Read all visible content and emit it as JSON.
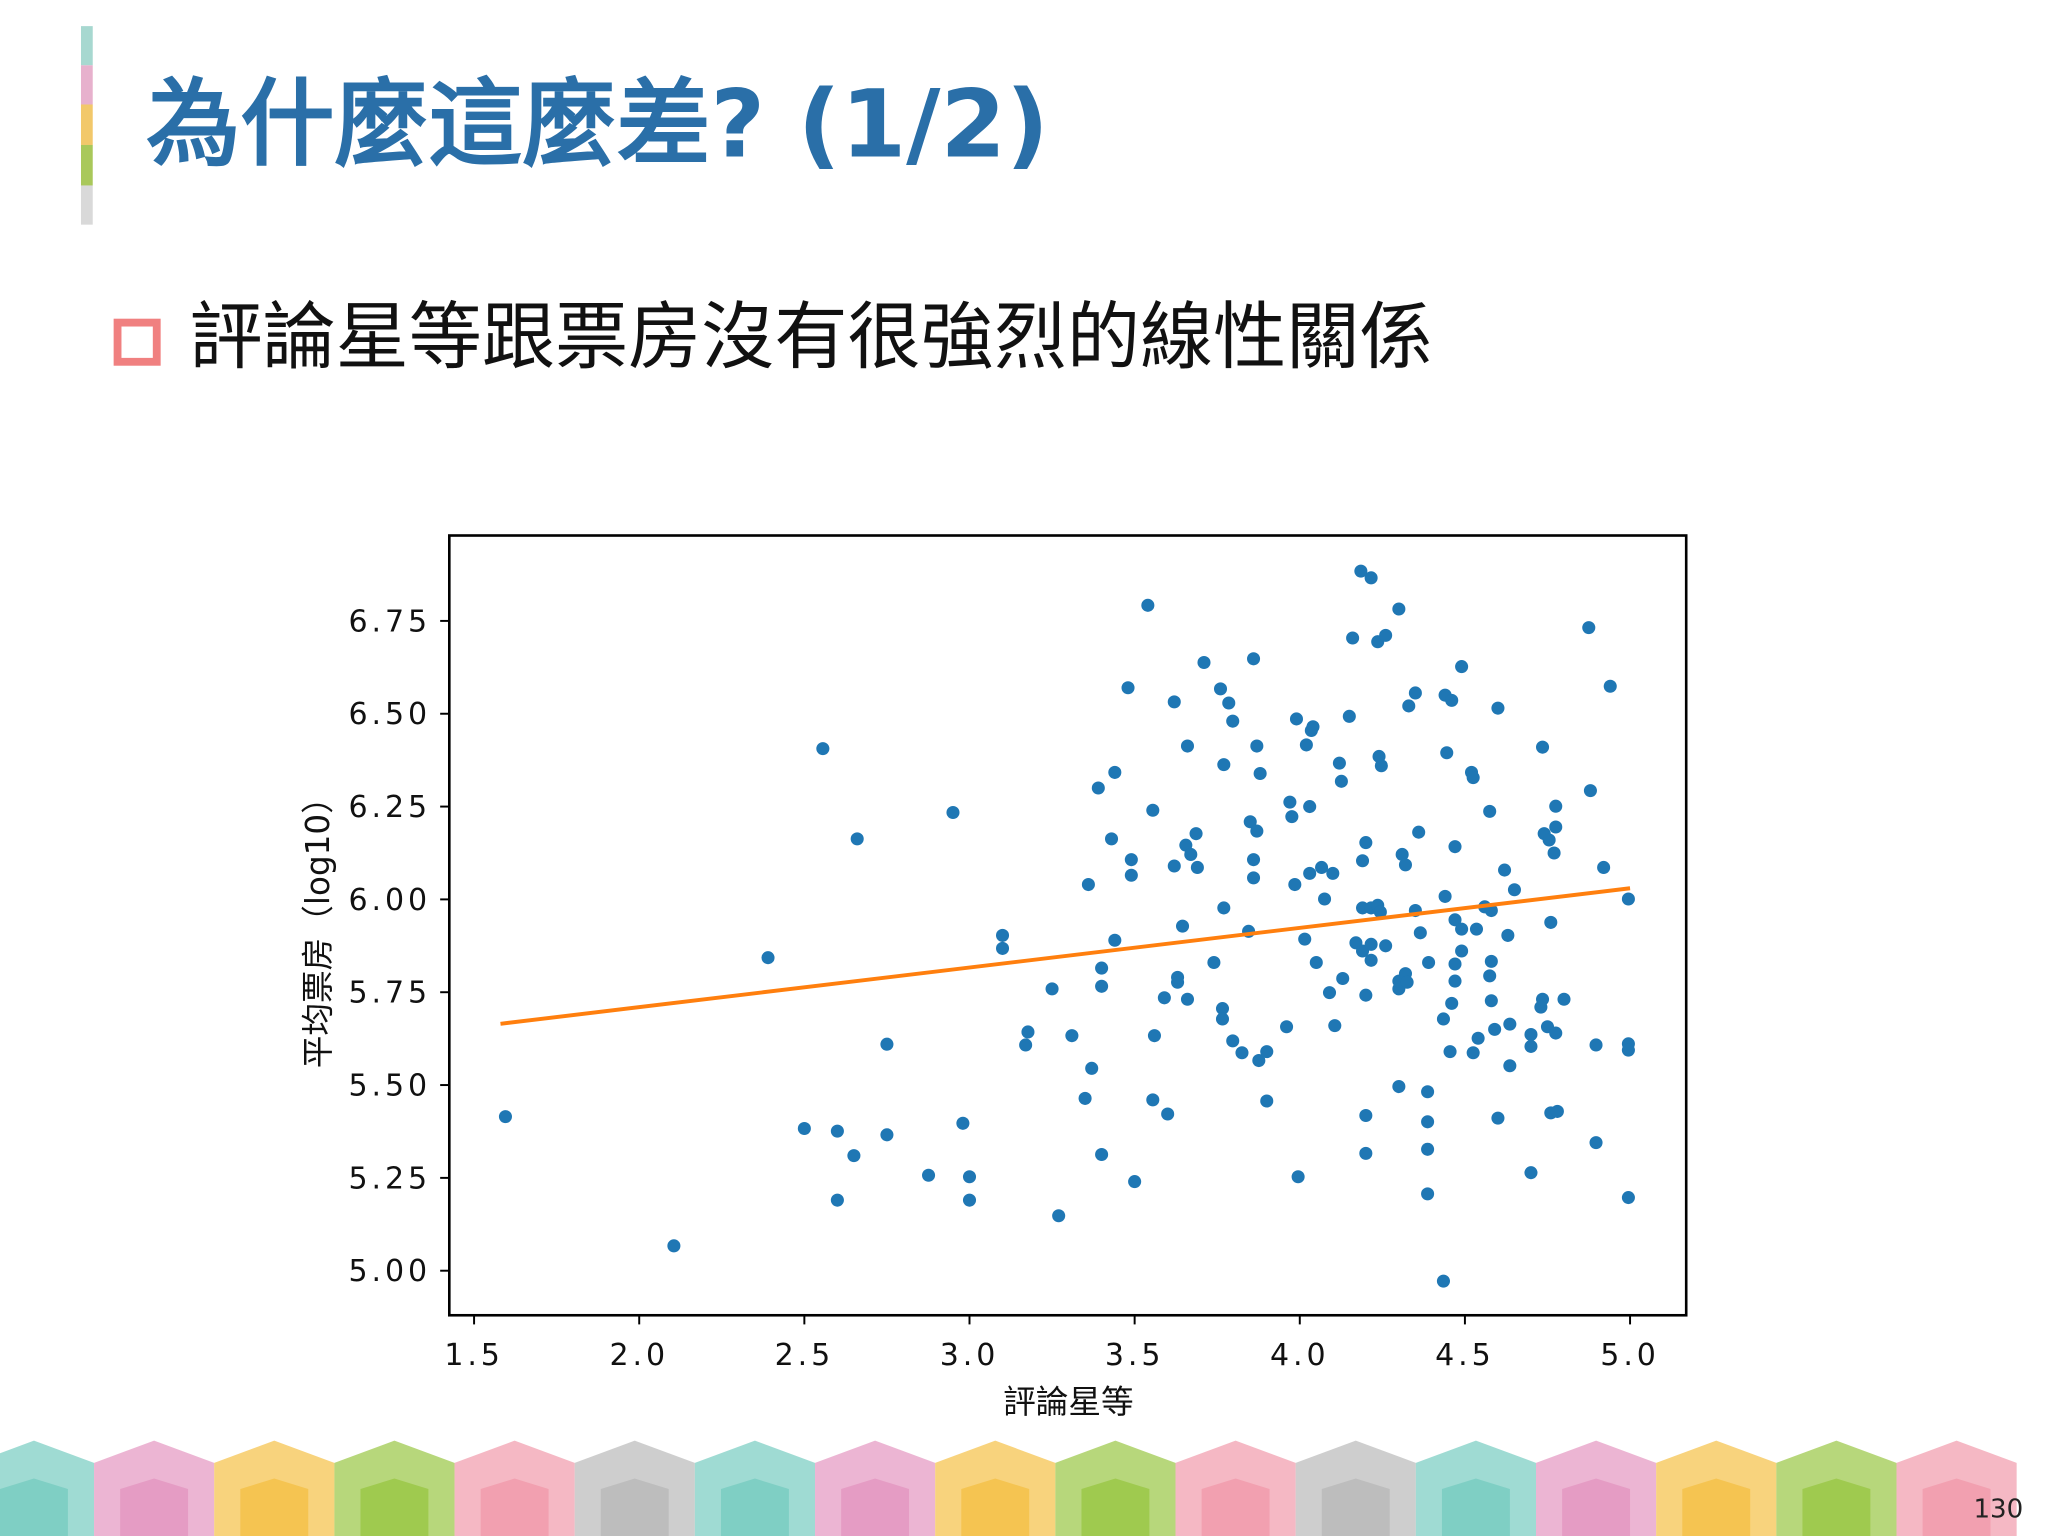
{
  "slide": {
    "title": "為什麼這麼差? (1/2)",
    "bullet": "評論星等跟票房沒有很強烈的線性關係",
    "page": "130"
  },
  "chart_data": {
    "type": "scatter",
    "xlabel": "評論星等",
    "ylabel": "平均票房（log10）",
    "xlim": [
      1.425,
      5.17
    ],
    "ylim": [
      4.88,
      6.98
    ],
    "xticks": [
      1.5,
      {
        "value": 2,
        "label": "2.0"
      },
      2.5,
      {
        "value": 3,
        "label": "3.0"
      },
      3.5,
      {
        "value": 4,
        "label": "4.0"
      },
      4.5,
      {
        "value": 5,
        "label": "5.0"
      }
    ],
    "yticks": [
      {
        "value": 5,
        "label": "5.00"
      },
      5.25,
      {
        "value": 5.5,
        "label": "5.50"
      },
      5.75,
      {
        "value": 6,
        "label": "6.00"
      },
      6.25,
      {
        "value": 6.5,
        "label": "6.50"
      },
      6.75
    ],
    "series": [
      {
        "type": "scatter",
        "color": "#1f77b4",
        "x": [
          1.595,
          2.105,
          2.39,
          2.556,
          2.5,
          2.6,
          2.6,
          2.65,
          2.66,
          2.75,
          2.75,
          2.876,
          2.95,
          2.98,
          3.0,
          3.0,
          3.1,
          3.1,
          3.177,
          3.17,
          3.25,
          3.27,
          3.31,
          3.36,
          3.37,
          3.35,
          3.39,
          3.4,
          3.4,
          3.4,
          3.44,
          3.43,
          3.44,
          3.48,
          3.49,
          3.49,
          3.5,
          3.54,
          3.555,
          3.56,
          3.555,
          3.6,
          3.59,
          3.62,
          3.62,
          3.63,
          3.63,
          3.645,
          3.66,
          3.655,
          3.67,
          3.686,
          3.69,
          3.66,
          3.71,
          3.74,
          3.76,
          3.785,
          3.797,
          3.77,
          3.77,
          3.766,
          3.766,
          3.797,
          3.825,
          3.845,
          3.85,
          3.86,
          3.87,
          3.87,
          3.86,
          3.86,
          3.88,
          3.876,
          3.9,
          3.9,
          3.97,
          3.976,
          3.99,
          3.985,
          3.96,
          3.995,
          4.02,
          4.035,
          4.04,
          4.03,
          4.03,
          4.015,
          4.05,
          4.066,
          4.075,
          4.09,
          4.1,
          4.106,
          4.12,
          4.126,
          4.13,
          4.15,
          4.16,
          4.17,
          4.185,
          4.216,
          4.236,
          4.26,
          4.19,
          4.2,
          4.19,
          4.216,
          4.216,
          4.2,
          4.19,
          4.216,
          4.24,
          4.247,
          4.236,
          4.244,
          4.26,
          4.2,
          4.2,
          4.3,
          4.33,
          4.35,
          4.31,
          4.32,
          4.36,
          4.35,
          4.365,
          4.3,
          4.3,
          4.32,
          4.325,
          4.39,
          4.3,
          4.387,
          4.387,
          4.387,
          4.387,
          4.435,
          4.44,
          4.46,
          4.49,
          4.445,
          4.52,
          4.525,
          4.47,
          4.44,
          4.47,
          4.49,
          4.535,
          4.47,
          4.47,
          4.46,
          4.435,
          4.455,
          4.525,
          4.49,
          4.54,
          4.56,
          4.58,
          4.575,
          4.58,
          4.575,
          4.58,
          4.59,
          4.6,
          4.6,
          4.62,
          4.65,
          4.63,
          4.636,
          4.636,
          4.7,
          4.7,
          4.7,
          4.73,
          4.735,
          4.735,
          4.74,
          4.755,
          4.775,
          4.775,
          4.77,
          4.76,
          4.75,
          4.775,
          4.76,
          4.78,
          4.8,
          4.875,
          4.88,
          4.92,
          4.94,
          4.897,
          4.897,
          4.995,
          4.995,
          4.995,
          4.995
        ],
        "values": [
          5.415,
          5.067,
          5.843,
          6.406,
          5.383,
          5.376,
          5.19,
          5.31,
          6.163,
          5.61,
          5.366,
          5.257,
          6.234,
          5.397,
          5.253,
          5.19,
          5.903,
          5.868,
          5.643,
          5.608,
          5.759,
          5.148,
          5.633,
          6.04,
          5.545,
          5.464,
          6.3,
          5.815,
          5.766,
          5.313,
          6.342,
          6.163,
          5.89,
          6.57,
          6.107,
          6.065,
          5.24,
          6.792,
          6.24,
          5.633,
          5.46,
          5.422,
          5.735,
          6.532,
          6.09,
          5.777,
          5.79,
          5.928,
          6.413,
          6.146,
          6.121,
          6.177,
          6.086,
          5.731,
          6.638,
          5.83,
          6.567,
          6.529,
          6.48,
          6.363,
          5.977,
          5.706,
          5.678,
          5.619,
          5.587,
          5.914,
          6.209,
          6.648,
          6.413,
          6.184,
          6.107,
          6.058,
          6.339,
          5.566,
          5.59,
          5.457,
          6.262,
          6.223,
          6.486,
          6.04,
          5.657,
          5.253,
          6.416,
          6.455,
          6.465,
          6.25,
          6.07,
          5.893,
          5.83,
          6.086,
          6.001,
          5.749,
          6.07,
          5.66,
          6.367,
          6.318,
          5.787,
          6.493,
          6.704,
          5.883,
          6.884,
          6.866,
          6.694,
          6.711,
          6.104,
          6.153,
          5.977,
          5.977,
          5.836,
          5.742,
          5.861,
          5.879,
          6.385,
          6.36,
          5.984,
          5.966,
          5.875,
          5.418,
          5.316,
          6.782,
          6.521,
          6.556,
          6.121,
          6.093,
          6.181,
          5.97,
          5.91,
          5.759,
          5.78,
          5.8,
          5.777,
          5.83,
          5.496,
          5.482,
          5.401,
          5.327,
          5.207,
          4.972,
          6.55,
          6.536,
          6.627,
          6.395,
          6.342,
          6.328,
          6.142,
          6.008,
          5.945,
          5.92,
          5.92,
          5.826,
          5.78,
          5.72,
          5.678,
          5.59,
          5.587,
          5.861,
          5.626,
          5.98,
          5.97,
          6.237,
          5.833,
          5.794,
          5.727,
          5.65,
          6.515,
          5.411,
          6.079,
          6.026,
          5.903,
          5.664,
          5.552,
          5.636,
          5.604,
          5.264,
          5.71,
          5.731,
          6.41,
          6.177,
          6.16,
          6.195,
          6.251,
          6.125,
          5.938,
          5.657,
          5.64,
          5.425,
          5.429,
          5.731,
          6.732,
          6.293,
          6.086,
          6.574,
          5.608,
          5.345,
          6.001,
          5.611,
          5.594,
          5.197
        ]
      },
      {
        "type": "line",
        "color": "#ff7f0e",
        "x": [
          1.58,
          5.0
        ],
        "values": [
          5.665,
          6.03
        ]
      }
    ]
  }
}
